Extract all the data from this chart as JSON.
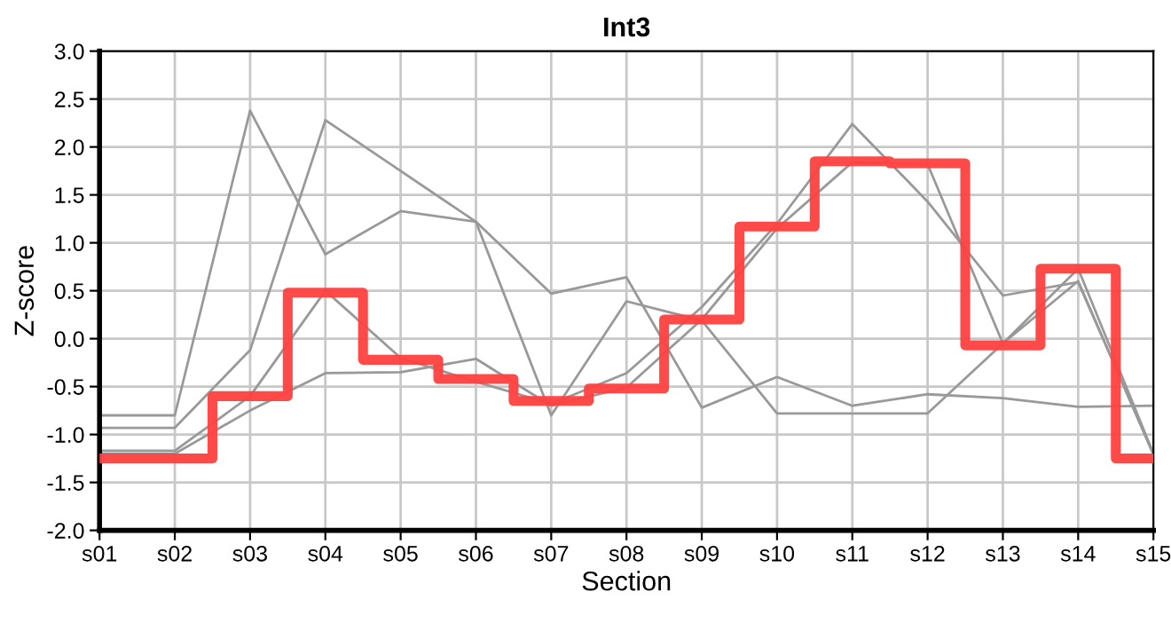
{
  "chart_data": {
    "type": "line",
    "title": "Int3",
    "xlabel": "Section",
    "ylabel": "Z-score",
    "categories": [
      "s01",
      "s02",
      "s03",
      "s04",
      "s05",
      "s06",
      "s07",
      "s08",
      "s09",
      "s10",
      "s11",
      "s12",
      "s13",
      "s14",
      "s15"
    ],
    "series": [
      {
        "color": "#999999",
        "values": [
          -0.8,
          -0.8,
          2.38,
          0.88,
          1.33,
          1.22,
          0.47,
          0.64,
          -0.72,
          -0.4,
          -0.7,
          -0.58,
          -0.62,
          -0.71,
          -0.7
        ]
      },
      {
        "color": "#999999",
        "values": [
          -0.93,
          -0.93,
          -0.12,
          2.28,
          1.75,
          1.22,
          -0.8,
          0.39,
          0.19,
          -0.78,
          -0.78,
          -0.78,
          -0.05,
          0.6,
          -1.21
        ]
      },
      {
        "color": "#999999",
        "values": [
          -1.17,
          -1.17,
          -0.6,
          0.5,
          -0.2,
          -0.45,
          -0.68,
          -0.36,
          0.33,
          1.2,
          2.24,
          1.43,
          0.45,
          0.59,
          -1.2
        ]
      },
      {
        "color": "#999999",
        "values": [
          -1.2,
          -1.2,
          -0.75,
          -0.36,
          -0.35,
          -0.21,
          -0.7,
          -0.51,
          0.2,
          1.15,
          1.84,
          1.82,
          -0.05,
          0.73,
          -1.2
        ]
      },
      {
        "type": "step",
        "color": "#ff4040",
        "values": [
          -1.25,
          -1.25,
          -0.6,
          0.48,
          -0.22,
          -0.42,
          -0.65,
          -0.52,
          0.2,
          1.17,
          1.85,
          1.83,
          -0.07,
          0.73,
          -1.25
        ]
      }
    ],
    "ylim": [
      -2.0,
      3.0
    ],
    "yticks": [
      {
        "value": -2.0,
        "label": "-2.0"
      },
      {
        "value": -1.5,
        "label": "-1.5"
      },
      {
        "value": -1.0,
        "label": "-1.0"
      },
      {
        "value": -0.5,
        "label": "-0.5"
      },
      {
        "value": 0.0,
        "label": "0.0"
      },
      {
        "value": 0.5,
        "label": "0.5"
      },
      {
        "value": 1.0,
        "label": "1.0"
      },
      {
        "value": 1.5,
        "label": "1.5"
      },
      {
        "value": 2.0,
        "label": "2.0"
      },
      {
        "value": 2.5,
        "label": "2.5"
      },
      {
        "value": 3.0,
        "label": "3.0"
      }
    ],
    "grid": true
  }
}
